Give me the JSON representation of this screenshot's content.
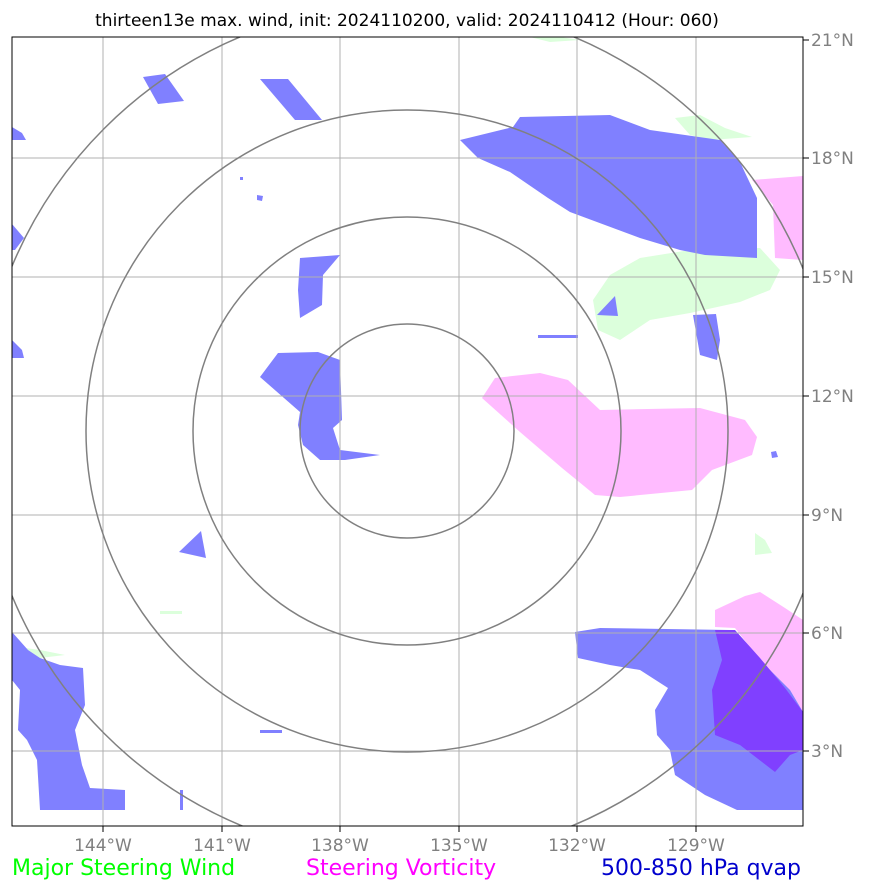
{
  "title": "thirteen13e max. wind, init: 2024110200, valid: 2024110412 (Hour: 060)",
  "lon_labels": [
    "144°W",
    "141°W",
    "138°W",
    "135°W",
    "132°W",
    "129°W"
  ],
  "lat_labels": [
    "21°N",
    "18°N",
    "15°N",
    "12°N",
    "9°N",
    "6°N",
    "3°N"
  ],
  "legend": {
    "steering_wind": {
      "label": "Major Steering Wind",
      "color": "#00ff00"
    },
    "vorticity": {
      "label": "Steering Vorticity",
      "color": "#ff00ff"
    },
    "qvap": {
      "label": "500-850 hPa qvap",
      "color": "#0000cd"
    }
  },
  "colors": {
    "qvap_fill": "#8080ff",
    "vorticity_fill": "#ffbbff",
    "wind_fill": "#dcffdc",
    "overlap_fill": "#8040ff",
    "grid": "#b0b0b0",
    "rings": "#808080"
  }
}
